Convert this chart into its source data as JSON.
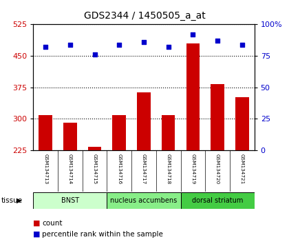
{
  "title": "GDS2344 / 1450505_a_at",
  "samples": [
    "GSM134713",
    "GSM134714",
    "GSM134715",
    "GSM134716",
    "GSM134717",
    "GSM134718",
    "GSM134719",
    "GSM134720",
    "GSM134721"
  ],
  "counts": [
    308,
    290,
    233,
    308,
    362,
    309,
    480,
    383,
    352
  ],
  "percentiles": [
    82,
    84,
    76,
    84,
    86,
    82,
    92,
    87,
    84
  ],
  "ylim_left": [
    225,
    525
  ],
  "yticks_left": [
    225,
    300,
    375,
    450,
    525
  ],
  "ylim_right": [
    0,
    100
  ],
  "yticks_right": [
    0,
    25,
    50,
    75,
    100
  ],
  "bar_color": "#cc0000",
  "dot_color": "#0000cc",
  "bar_width": 0.55,
  "tissue_groups": [
    {
      "label": "BNST",
      "indices": [
        0,
        1,
        2
      ],
      "color": "#ccffcc"
    },
    {
      "label": "nucleus accumbens",
      "indices": [
        3,
        4,
        5
      ],
      "color": "#88ee88"
    },
    {
      "label": "dorsal striatum",
      "indices": [
        6,
        7,
        8
      ],
      "color": "#44cc44"
    }
  ],
  "xlabel_tissue": "tissue",
  "legend_count": "count",
  "legend_pct": "percentile rank within the sample",
  "background_color": "#ffffff",
  "tick_label_color_left": "#cc0000",
  "tick_label_color_right": "#0000cc",
  "title_color": "#000000",
  "sample_box_color": "#cccccc",
  "ytick_fontsize": 8,
  "title_fontsize": 10
}
